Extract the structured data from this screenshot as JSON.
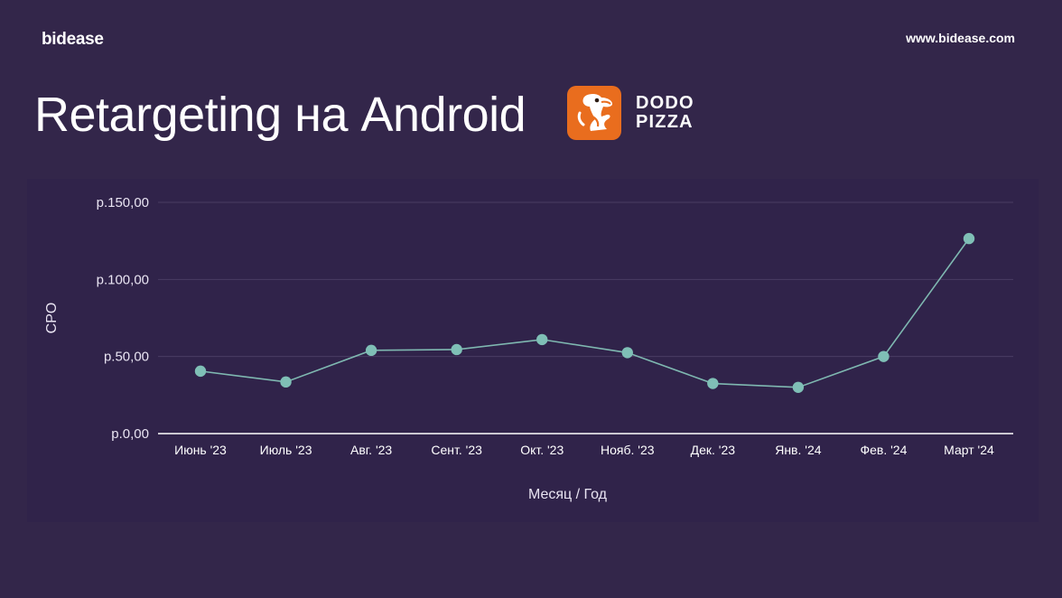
{
  "header": {
    "brand": "bidease",
    "site": "www.bidease.com",
    "title": "Retargeting на Android",
    "logo_lines": [
      "DODO",
      "PIZZA"
    ]
  },
  "colors": {
    "background": "#33264a",
    "line": "#7fb8b1",
    "point": "#7fbfb6",
    "grid": "#4a3d63",
    "logo": "#e96d1e"
  },
  "chart_data": {
    "type": "line",
    "title": "",
    "xlabel": "Месяц / Год",
    "ylabel": "CPO",
    "categories": [
      "Июнь '23",
      "Июль '23",
      "Авг. '23",
      "Сент. '23",
      "Окт. '23",
      "Нояб. '23",
      "Дек. '23",
      "Янв. '24",
      "Фев. '24",
      "Март '24"
    ],
    "yticks": [
      0,
      50,
      100,
      150
    ],
    "ytick_labels": [
      "р.0,00",
      "р.50,00",
      "р.100,00",
      "р.150,00"
    ],
    "ylim": [
      0,
      150
    ],
    "grid": true,
    "legend": "none",
    "series": [
      {
        "values": [
          40.5,
          33.5,
          54,
          54.5,
          61,
          52.5,
          32.5,
          30,
          50,
          126.5
        ]
      }
    ]
  }
}
